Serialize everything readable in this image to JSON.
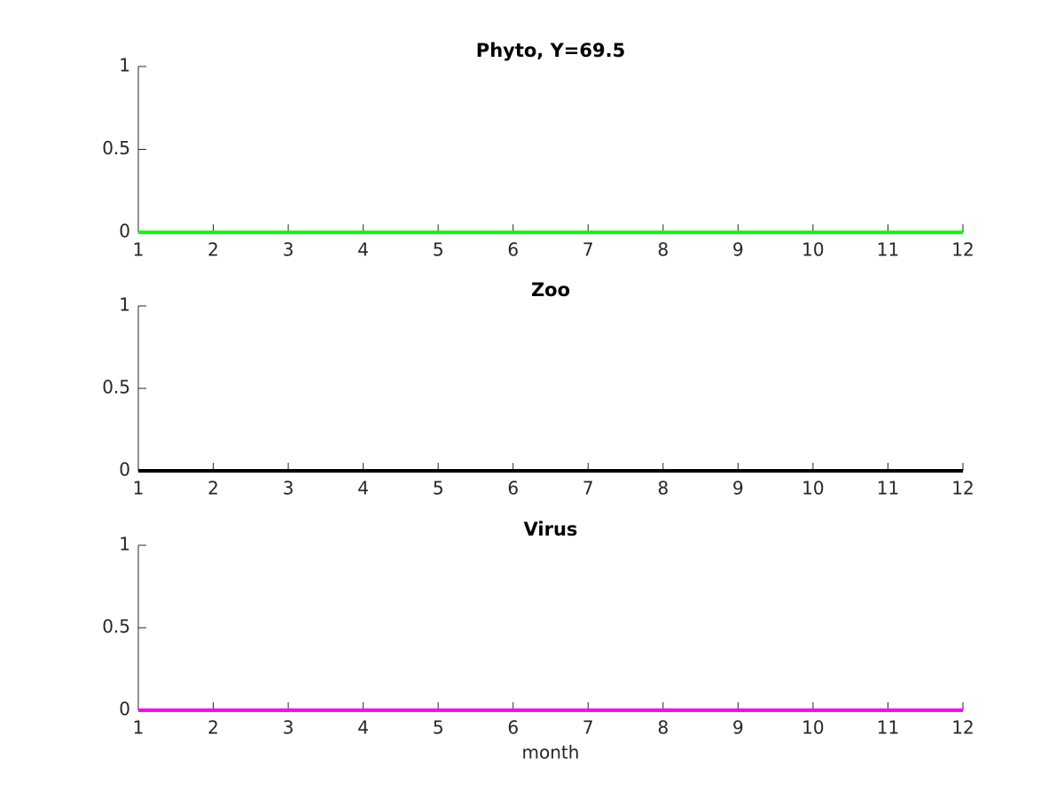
{
  "chart_data": [
    {
      "type": "line",
      "title": "Phyto, Y=69.5",
      "x": [
        1,
        2,
        3,
        4,
        5,
        6,
        7,
        8,
        9,
        10,
        11,
        12
      ],
      "values": [
        0,
        0,
        0,
        0,
        0,
        0,
        0,
        0,
        0,
        0,
        0,
        0
      ],
      "color": "#00ff00",
      "xlim": [
        1,
        12
      ],
      "xticks": [
        1,
        2,
        3,
        4,
        5,
        6,
        7,
        8,
        9,
        10,
        11,
        12
      ],
      "ylim": [
        0,
        1
      ],
      "yticks": [
        0,
        0.5,
        1
      ]
    },
    {
      "type": "line",
      "title": "Zoo",
      "x": [
        1,
        2,
        3,
        4,
        5,
        6,
        7,
        8,
        9,
        10,
        11,
        12
      ],
      "values": [
        0,
        0,
        0,
        0,
        0,
        0,
        0,
        0,
        0,
        0,
        0,
        0
      ],
      "color": "#000000",
      "xlim": [
        1,
        12
      ],
      "xticks": [
        1,
        2,
        3,
        4,
        5,
        6,
        7,
        8,
        9,
        10,
        11,
        12
      ],
      "ylim": [
        0,
        1
      ],
      "yticks": [
        0,
        0.5,
        1
      ]
    },
    {
      "type": "line",
      "title": "Virus",
      "xlabel": "month",
      "x": [
        1,
        2,
        3,
        4,
        5,
        6,
        7,
        8,
        9,
        10,
        11,
        12
      ],
      "values": [
        0,
        0,
        0,
        0,
        0,
        0,
        0,
        0,
        0,
        0,
        0,
        0
      ],
      "color": "#ff00ff",
      "xlim": [
        1,
        12
      ],
      "xticks": [
        1,
        2,
        3,
        4,
        5,
        6,
        7,
        8,
        9,
        10,
        11,
        12
      ],
      "ylim": [
        0,
        1
      ],
      "yticks": [
        0,
        0.5,
        1
      ]
    }
  ]
}
